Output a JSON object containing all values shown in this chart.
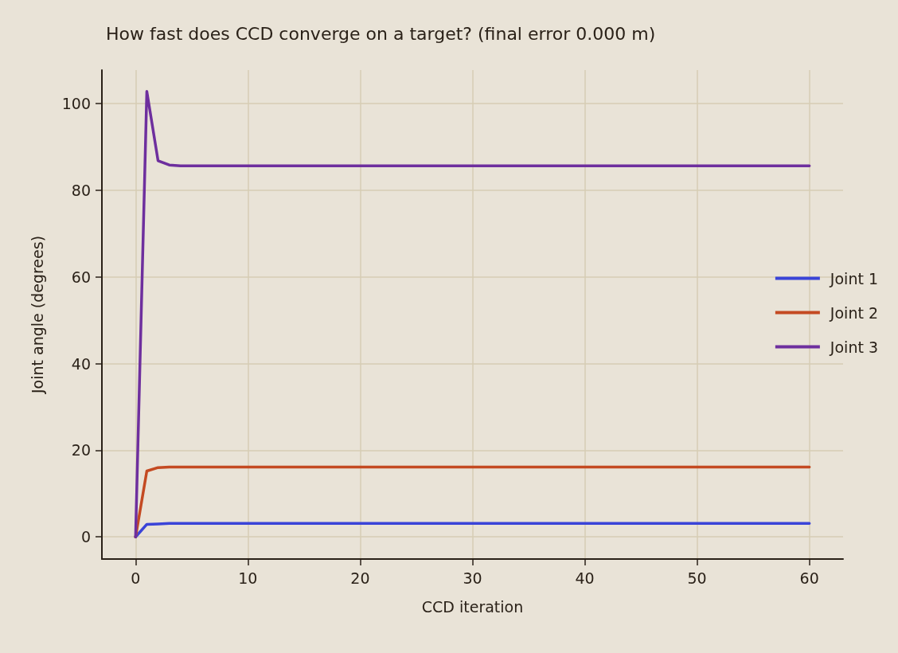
{
  "chart_data": {
    "type": "line",
    "title": "How fast does CCD converge on a target? (final error 0.000 m)",
    "xlabel": "CCD iteration",
    "ylabel": "Joint angle (degrees)",
    "x": [
      0,
      1,
      2,
      3,
      4,
      5,
      60
    ],
    "series": [
      {
        "name": "Joint 1",
        "color": "#3a44d8",
        "values": [
          0,
          2.9,
          3.0,
          3.1,
          3.1,
          3.1,
          3.1
        ]
      },
      {
        "name": "Joint 2",
        "color": "#c44a22",
        "values": [
          0,
          15.2,
          16.0,
          16.1,
          16.1,
          16.1,
          16.1
        ]
      },
      {
        "name": "Joint 3",
        "color": "#6e2f9e",
        "values": [
          0,
          102.8,
          86.8,
          85.8,
          85.6,
          85.6,
          85.6
        ]
      }
    ],
    "xlim": [
      -3,
      63
    ],
    "xticks": [
      0,
      10,
      20,
      30,
      40,
      50,
      60
    ],
    "ylim": [
      -5.1,
      107.7
    ],
    "yticks": [
      0,
      20,
      40,
      60,
      80,
      100
    ],
    "grid": true,
    "legend": "right",
    "marker": "none",
    "line_style": "solid"
  }
}
